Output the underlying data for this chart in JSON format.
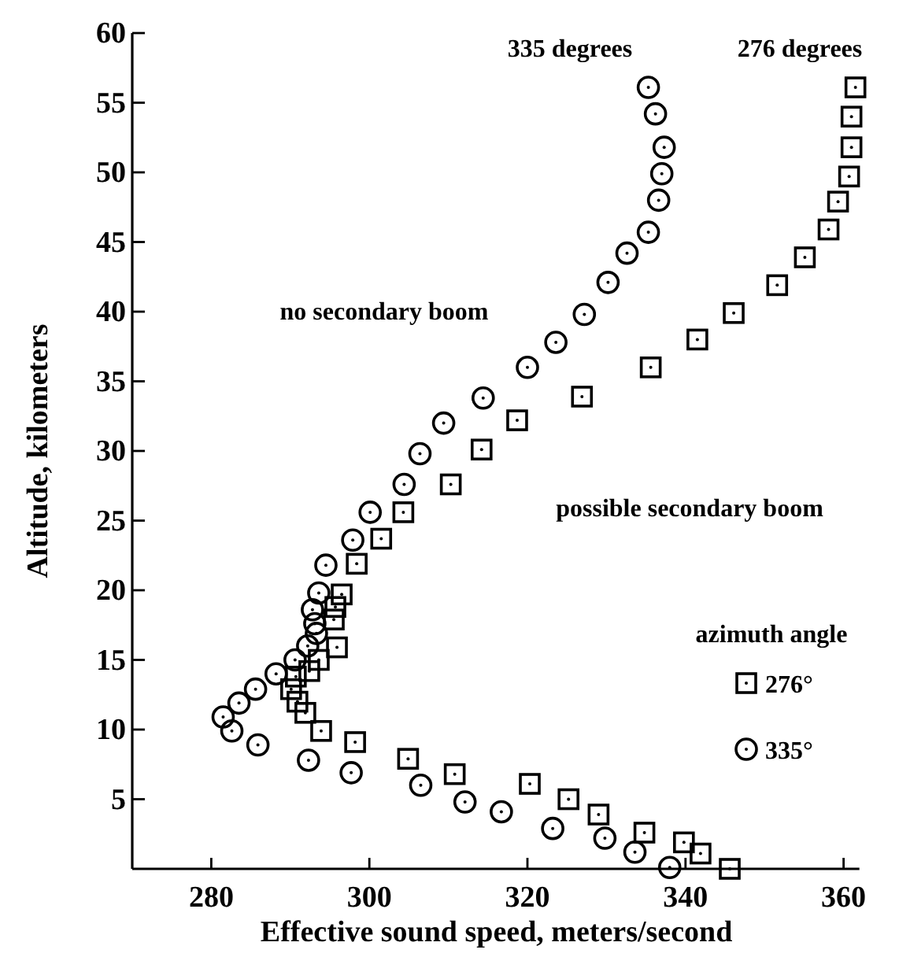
{
  "chart_data": {
    "type": "scatter",
    "xlabel": "Effective sound speed, meters/second",
    "ylabel": "Altitude, kilometers",
    "xlim": [
      270,
      362
    ],
    "xticks": [
      280,
      300,
      320,
      340,
      360
    ],
    "ylim": [
      0,
      60
    ],
    "yticks": [
      5,
      10,
      15,
      20,
      25,
      30,
      35,
      40,
      45,
      50,
      55,
      60
    ],
    "legend": "right",
    "legend_title": "azimuth angle",
    "grid": false,
    "series": [
      {
        "name": "276°",
        "color": "#000000",
        "marker": "square",
        "x": [
          361.5,
          361.0,
          361.0,
          360.7,
          359.3,
          358.1,
          355.1,
          351.6,
          346.1,
          341.5,
          335.6,
          326.9,
          318.7,
          314.2,
          310.3,
          304.3,
          301.5,
          298.4,
          296.5,
          295.7,
          295.5,
          295.9,
          293.6,
          292.4,
          290.7,
          290.1,
          290.9,
          291.9,
          293.9,
          298.2,
          304.9,
          310.8,
          320.3,
          325.2,
          329.0,
          334.8,
          339.8,
          341.9,
          345.6
        ],
        "values": [
          56.1,
          54.0,
          51.8,
          49.7,
          47.9,
          45.9,
          43.9,
          41.9,
          39.9,
          38.0,
          36.0,
          33.9,
          32.2,
          30.1,
          27.6,
          25.6,
          23.7,
          21.9,
          19.7,
          18.8,
          17.9,
          15.9,
          15.0,
          14.2,
          13.8,
          12.9,
          12.0,
          11.2,
          9.9,
          9.1,
          7.9,
          6.8,
          6.1,
          5.0,
          3.9,
          2.6,
          1.9,
          1.1,
          0.0
        ]
      },
      {
        "name": "335°",
        "color": "#000000",
        "marker": "circle",
        "x": [
          335.3,
          336.2,
          337.3,
          337.0,
          336.6,
          335.3,
          332.6,
          330.2,
          327.2,
          323.6,
          320.0,
          314.4,
          309.4,
          306.4,
          304.4,
          300.1,
          297.9,
          294.5,
          293.6,
          292.8,
          293.1,
          293.3,
          292.2,
          290.6,
          288.2,
          285.6,
          283.5,
          281.5,
          282.6,
          285.9,
          292.3,
          297.7,
          306.5,
          312.1,
          316.7,
          323.2,
          329.8,
          333.6,
          338.0
        ],
        "values": [
          56.1,
          54.2,
          51.8,
          49.9,
          48.0,
          45.7,
          44.2,
          42.1,
          39.8,
          37.8,
          36.0,
          33.8,
          32.0,
          29.8,
          27.6,
          25.6,
          23.6,
          21.8,
          19.8,
          18.6,
          17.6,
          16.9,
          16.0,
          15.0,
          14.0,
          12.9,
          11.9,
          10.9,
          9.9,
          8.9,
          7.8,
          6.9,
          6.0,
          4.8,
          4.1,
          2.9,
          2.2,
          1.2,
          0.1
        ]
      }
    ],
    "annotations": [
      "335 degrees",
      "276 degrees",
      "no secondary boom",
      "possible secondary boom"
    ]
  }
}
